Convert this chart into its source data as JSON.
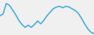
{
  "x": [
    0,
    1,
    2,
    3,
    4,
    5,
    6,
    7,
    8,
    9,
    10,
    11,
    12,
    13,
    14,
    15,
    16,
    17,
    18,
    19,
    20,
    21,
    22,
    23,
    24,
    25,
    26,
    27,
    28,
    29,
    30
  ],
  "y": [
    55,
    60,
    90,
    85,
    72,
    58,
    42,
    30,
    22,
    28,
    22,
    30,
    40,
    32,
    42,
    55,
    65,
    75,
    80,
    82,
    78,
    82,
    80,
    75,
    70,
    62,
    48,
    32,
    18,
    8,
    4
  ],
  "line_color": "#4aafd5",
  "linewidth": 1.2,
  "background_color": "#f0f0f0",
  "ylim": [
    0,
    100
  ],
  "xlim": [
    0,
    30
  ]
}
